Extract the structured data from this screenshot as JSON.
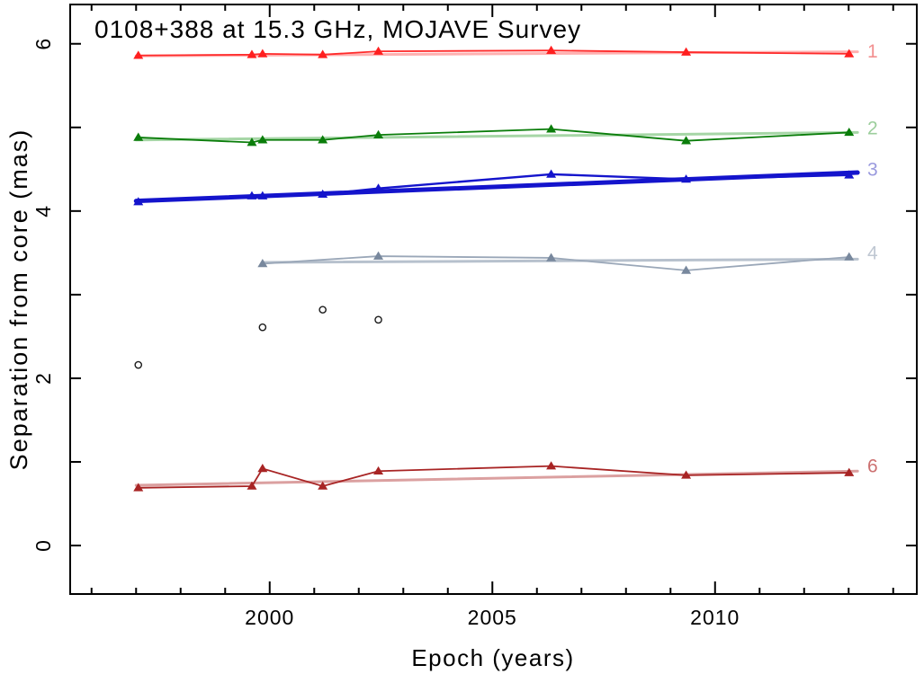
{
  "figure": {
    "title": "0108+388 at 15.3 GHz, MOJAVE Survey",
    "xlabel": "Epoch (years)",
    "ylabel": "Separation from core (mas)"
  },
  "chart_data": {
    "type": "scatter",
    "title": "0108+388 at 15.3 GHz, MOJAVE Survey",
    "xlabel": "Epoch (years)",
    "ylabel": "Separation from core (mas)",
    "xlim": [
      1995.52,
      2014.53
    ],
    "ylim": [
      -0.58,
      6.47
    ],
    "x_major_ticks": [
      2000,
      2005,
      2010
    ],
    "x_minor_tick_step": 1,
    "y_ticks": [
      0,
      1,
      2,
      3,
      4,
      5,
      6
    ],
    "y_labeled_ticks": [
      0,
      2,
      4,
      6
    ],
    "grid": false,
    "legend_position": "right-edge-inline-labels",
    "frame_color": "#000000",
    "epochs": [
      1997.05,
      1999.6,
      1999.84,
      2001.19,
      2002.44,
      2006.32,
      2009.35,
      2013.01
    ],
    "series": [
      {
        "name": "component-1",
        "label": "1",
        "marker": "triangle",
        "marker_color": "#ff1f1f",
        "line_color": "#ff2a2a",
        "fit_color": "#ffb0b0",
        "label_color": "#f29090",
        "line_width": 1.8,
        "fit_width": 3,
        "points": [
          [
            1997.05,
            5.86
          ],
          [
            1999.6,
            5.87
          ],
          [
            1999.84,
            5.88
          ],
          [
            2001.19,
            5.87
          ],
          [
            2002.44,
            5.91
          ],
          [
            2006.32,
            5.92
          ],
          [
            2009.35,
            5.9
          ],
          [
            2013.01,
            5.88
          ]
        ],
        "fit": [
          [
            1997.0,
            5.855
          ],
          [
            2013.2,
            5.905
          ]
        ],
        "label_pos": [
          2013.42,
          5.91
        ]
      },
      {
        "name": "component-2",
        "label": "2",
        "marker": "triangle",
        "marker_color": "#0a7d0a",
        "line_color": "#0a7d0a",
        "fit_color": "#a6d6a6",
        "label_color": "#9cce9c",
        "line_width": 1.8,
        "fit_width": 3,
        "points": [
          [
            1997.05,
            4.88
          ],
          [
            1999.6,
            4.82
          ],
          [
            1999.84,
            4.85
          ],
          [
            2001.19,
            4.85
          ],
          [
            2002.44,
            4.91
          ],
          [
            2006.32,
            4.98
          ],
          [
            2009.35,
            4.84
          ],
          [
            2013.01,
            4.94
          ]
        ],
        "fit": [
          [
            1997.0,
            4.85
          ],
          [
            2013.2,
            4.94
          ]
        ],
        "label_pos": [
          2013.42,
          4.99
        ]
      },
      {
        "name": "component-3",
        "label": "3",
        "marker": "triangle",
        "marker_color": "#1414cc",
        "line_color": "#1414cc",
        "fit_color": "#1414cc",
        "label_color": "#9a9ade",
        "line_width": 2.4,
        "fit_width": 5,
        "points": [
          [
            1997.05,
            4.11
          ],
          [
            1999.6,
            4.18
          ],
          [
            1999.84,
            4.18
          ],
          [
            2001.19,
            4.2
          ],
          [
            2002.44,
            4.27
          ],
          [
            2006.32,
            4.44
          ],
          [
            2009.35,
            4.38
          ],
          [
            2013.01,
            4.43
          ]
        ],
        "fit": [
          [
            1997.0,
            4.12
          ],
          [
            2013.2,
            4.46
          ]
        ],
        "label_pos": [
          2013.42,
          4.5
        ]
      },
      {
        "name": "component-4",
        "label": "4",
        "marker": "triangle",
        "marker_color": "#78889d",
        "line_color": "#9aa7b8",
        "fit_color": "#b7c1cd",
        "label_color": "#bfc7d2",
        "line_width": 1.8,
        "fit_width": 3,
        "points": [
          [
            1999.84,
            3.37
          ],
          [
            2002.44,
            3.46
          ],
          [
            2006.32,
            3.44
          ],
          [
            2009.35,
            3.29
          ],
          [
            2013.01,
            3.45
          ]
        ],
        "fit": [
          [
            1999.84,
            3.385
          ],
          [
            2013.2,
            3.425
          ]
        ],
        "label_pos": [
          2013.42,
          3.5
        ]
      },
      {
        "name": "component-6",
        "label": "6",
        "marker": "triangle",
        "marker_color": "#a82424",
        "line_color": "#a82424",
        "fit_color": "#dba0a0",
        "label_color": "#cc7070",
        "line_width": 1.8,
        "fit_width": 3,
        "points": [
          [
            1997.05,
            0.69
          ],
          [
            1999.6,
            0.71
          ],
          [
            1999.84,
            0.92
          ],
          [
            2001.19,
            0.71
          ],
          [
            2002.44,
            0.89
          ],
          [
            2006.32,
            0.95
          ],
          [
            2009.35,
            0.84
          ],
          [
            2013.01,
            0.87
          ]
        ],
        "fit": [
          [
            1997.0,
            0.72
          ],
          [
            2013.2,
            0.89
          ]
        ],
        "label_pos": [
          2013.42,
          0.95
        ]
      },
      {
        "name": "unidentified-component",
        "label": "",
        "marker": "open-circle",
        "marker_color": "#1a1a1a",
        "line_color": "none",
        "fit_color": "none",
        "label_color": "none",
        "line_width": 0,
        "fit_width": 0,
        "points": [
          [
            1997.05,
            2.16
          ],
          [
            1999.84,
            2.61
          ],
          [
            2001.19,
            2.82
          ],
          [
            2002.44,
            2.7
          ]
        ],
        "fit": null,
        "label_pos": null
      }
    ]
  }
}
